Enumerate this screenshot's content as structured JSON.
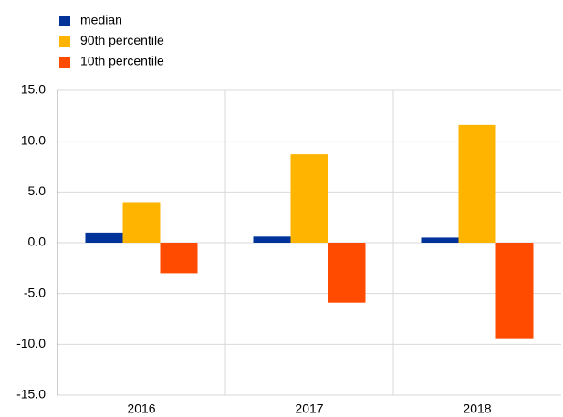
{
  "chart_data": {
    "type": "bar",
    "categories": [
      "2016",
      "2017",
      "2018"
    ],
    "series": [
      {
        "name": "median",
        "color": "#003399",
        "values": [
          1.0,
          0.6,
          0.5
        ]
      },
      {
        "name": "90th percentile",
        "color": "#ffb400",
        "values": [
          4.0,
          8.7,
          11.6
        ]
      },
      {
        "name": "10th percentile",
        "color": "#ff4b00",
        "values": [
          -3.0,
          -5.9,
          -9.4
        ]
      }
    ],
    "ylim": [
      -15,
      15
    ],
    "yticks": [
      {
        "value": -15,
        "label": "-15.0"
      },
      {
        "value": -10,
        "label": "-10.0"
      },
      {
        "value": -5,
        "label": "-5.0"
      },
      {
        "value": 0,
        "label": "0.0"
      },
      {
        "value": 5,
        "label": "5.0"
      },
      {
        "value": 10,
        "label": "10.0"
      },
      {
        "value": 15,
        "label": "15.0"
      }
    ],
    "grid": true,
    "legend": "top-left"
  }
}
